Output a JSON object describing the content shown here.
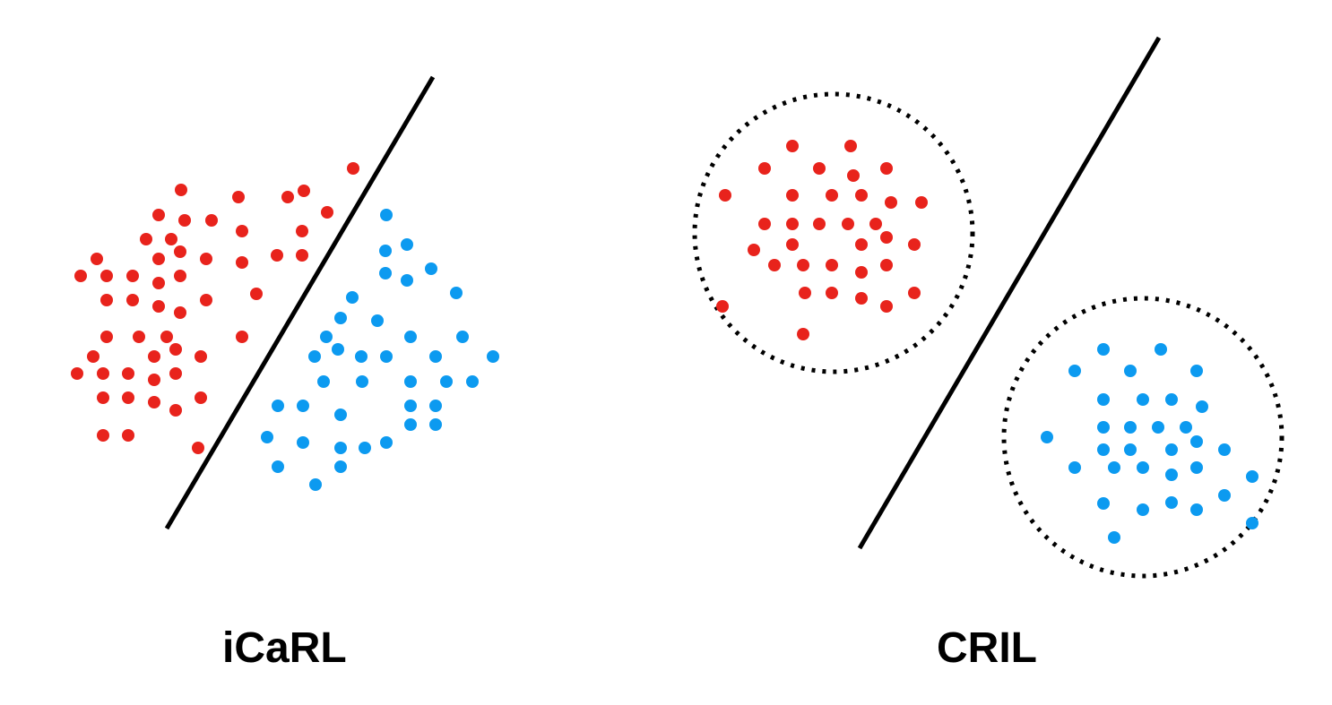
{
  "colors": {
    "class_a": "#e8231c",
    "class_b": "#0c9af0",
    "boundary": "#000000",
    "region": "#000000"
  },
  "panels": [
    {
      "label": "iCaRL",
      "boundary": [
        [
          186,
          590
        ],
        [
          483,
          86
        ]
      ],
      "regions": [],
      "class_a_points": [
        [
          394,
          188
        ],
        [
          202,
          212
        ],
        [
          266,
          220
        ],
        [
          321,
          220
        ],
        [
          339,
          213
        ],
        [
          177,
          240
        ],
        [
          206,
          246
        ],
        [
          236,
          246
        ],
        [
          365,
          237
        ],
        [
          163,
          267
        ],
        [
          191,
          267
        ],
        [
          270,
          258
        ],
        [
          337,
          258
        ],
        [
          108,
          289
        ],
        [
          177,
          289
        ],
        [
          201,
          281
        ],
        [
          230,
          289
        ],
        [
          270,
          293
        ],
        [
          309,
          285
        ],
        [
          337,
          285
        ],
        [
          90,
          308
        ],
        [
          119,
          308
        ],
        [
          148,
          308
        ],
        [
          177,
          316
        ],
        [
          201,
          308
        ],
        [
          286,
          328
        ],
        [
          119,
          335
        ],
        [
          148,
          335
        ],
        [
          177,
          342
        ],
        [
          201,
          349
        ],
        [
          230,
          335
        ],
        [
          119,
          376
        ],
        [
          155,
          376
        ],
        [
          186,
          376
        ],
        [
          270,
          376
        ],
        [
          104,
          398
        ],
        [
          172,
          398
        ],
        [
          196,
          390
        ],
        [
          224,
          398
        ],
        [
          86,
          417
        ],
        [
          115,
          417
        ],
        [
          143,
          417
        ],
        [
          172,
          424
        ],
        [
          196,
          417
        ],
        [
          115,
          444
        ],
        [
          143,
          444
        ],
        [
          172,
          449
        ],
        [
          196,
          458
        ],
        [
          224,
          444
        ],
        [
          115,
          486
        ],
        [
          143,
          486
        ],
        [
          221,
          500
        ]
      ],
      "class_b_points": [
        [
          431,
          240
        ],
        [
          454,
          273
        ],
        [
          430,
          280
        ],
        [
          481,
          300
        ],
        [
          430,
          305
        ],
        [
          454,
          313
        ],
        [
          509,
          327
        ],
        [
          393,
          332
        ],
        [
          380,
          355
        ],
        [
          421,
          358
        ],
        [
          364,
          376
        ],
        [
          458,
          376
        ],
        [
          516,
          376
        ],
        [
          351,
          398
        ],
        [
          377,
          390
        ],
        [
          403,
          398
        ],
        [
          431,
          398
        ],
        [
          486,
          398
        ],
        [
          550,
          398
        ],
        [
          361,
          426
        ],
        [
          404,
          426
        ],
        [
          458,
          426
        ],
        [
          498,
          426
        ],
        [
          527,
          426
        ],
        [
          310,
          453
        ],
        [
          338,
          453
        ],
        [
          380,
          463
        ],
        [
          458,
          453
        ],
        [
          486,
          453
        ],
        [
          458,
          474
        ],
        [
          486,
          474
        ],
        [
          298,
          488
        ],
        [
          338,
          494
        ],
        [
          380,
          500
        ],
        [
          407,
          500
        ],
        [
          431,
          494
        ],
        [
          310,
          521
        ],
        [
          380,
          521
        ],
        [
          352,
          541
        ]
      ]
    },
    {
      "label": "CRIL",
      "boundary": [
        [
          959,
          612
        ],
        [
          1293,
          42
        ]
      ],
      "regions": [
        {
          "cx": 930,
          "cy": 260,
          "r": 155
        },
        {
          "cx": 1275,
          "cy": 488,
          "r": 155
        }
      ],
      "class_a_points": [
        [
          884,
          163
        ],
        [
          949,
          163
        ],
        [
          853,
          188
        ],
        [
          914,
          188
        ],
        [
          952,
          196
        ],
        [
          989,
          188
        ],
        [
          809,
          218
        ],
        [
          884,
          218
        ],
        [
          928,
          218
        ],
        [
          961,
          218
        ],
        [
          994,
          226
        ],
        [
          1028,
          226
        ],
        [
          853,
          250
        ],
        [
          884,
          250
        ],
        [
          914,
          250
        ],
        [
          946,
          250
        ],
        [
          977,
          250
        ],
        [
          841,
          279
        ],
        [
          884,
          273
        ],
        [
          961,
          273
        ],
        [
          989,
          265
        ],
        [
          1020,
          273
        ],
        [
          864,
          296
        ],
        [
          896,
          296
        ],
        [
          928,
          296
        ],
        [
          961,
          304
        ],
        [
          989,
          296
        ],
        [
          898,
          327
        ],
        [
          928,
          327
        ],
        [
          961,
          333
        ],
        [
          989,
          342
        ],
        [
          1020,
          327
        ],
        [
          806,
          342
        ],
        [
          896,
          373
        ]
      ],
      "class_b_points": [
        [
          1231,
          390
        ],
        [
          1295,
          390
        ],
        [
          1199,
          414
        ],
        [
          1261,
          414
        ],
        [
          1335,
          414
        ],
        [
          1231,
          446
        ],
        [
          1275,
          446
        ],
        [
          1307,
          446
        ],
        [
          1341,
          454
        ],
        [
          1231,
          477
        ],
        [
          1261,
          477
        ],
        [
          1292,
          477
        ],
        [
          1323,
          477
        ],
        [
          1168,
          488
        ],
        [
          1231,
          502
        ],
        [
          1261,
          502
        ],
        [
          1307,
          502
        ],
        [
          1335,
          493
        ],
        [
          1366,
          502
        ],
        [
          1199,
          522
        ],
        [
          1243,
          522
        ],
        [
          1275,
          522
        ],
        [
          1307,
          530
        ],
        [
          1335,
          522
        ],
        [
          1397,
          532
        ],
        [
          1231,
          562
        ],
        [
          1275,
          569
        ],
        [
          1307,
          561
        ],
        [
          1335,
          569
        ],
        [
          1366,
          553
        ],
        [
          1397,
          584
        ],
        [
          1243,
          600
        ]
      ]
    }
  ]
}
